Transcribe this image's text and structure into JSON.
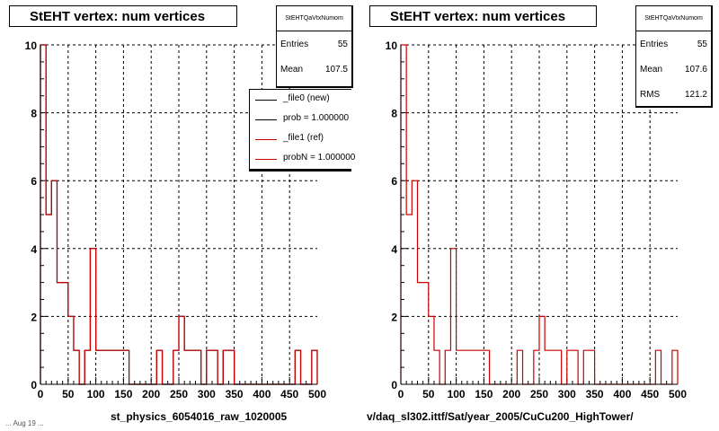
{
  "footer_text": "... Aug 19 ...",
  "chart_data": [
    {
      "type": "histogram",
      "title": "StEHT  vertex: num vertices",
      "xlabel": "st_physics_6054016_raw_1020005",
      "xlim": [
        0,
        500
      ],
      "ylim": [
        0,
        10
      ],
      "x_ticks": [
        0,
        50,
        100,
        150,
        200,
        250,
        300,
        350,
        400,
        450,
        500
      ],
      "y_ticks": [
        0,
        2,
        4,
        6,
        8,
        10
      ],
      "grid": true,
      "bin_width": 10,
      "series": [
        {
          "name": "_file0 (new)",
          "color": "#000000",
          "values": [
            10,
            5,
            6,
            3,
            3,
            2,
            1,
            0,
            1,
            4,
            1,
            1,
            1,
            1,
            1,
            1,
            0,
            0,
            0,
            0,
            0,
            1,
            0,
            0,
            1,
            2,
            1,
            1,
            1,
            0,
            1,
            1,
            0,
            1,
            1,
            0,
            0,
            0,
            0,
            0,
            0,
            0,
            0,
            0,
            0,
            0,
            1,
            0,
            0,
            1
          ]
        },
        {
          "name": "_file1 (ref)",
          "color": "#cc0000",
          "values": [
            10,
            5,
            6,
            3,
            3,
            2,
            1,
            0,
            1,
            4,
            1,
            1,
            1,
            1,
            1,
            1,
            0,
            0,
            0,
            0,
            0,
            1,
            0,
            0,
            1,
            2,
            1,
            1,
            1,
            0,
            1,
            1,
            0,
            1,
            1,
            0,
            0,
            0,
            0,
            0,
            0,
            0,
            0,
            0,
            0,
            0,
            1,
            0,
            0,
            1
          ]
        }
      ],
      "stats": {
        "name": "StEHTQaVtxNumom",
        "entries_label": "Entries",
        "entries": "55",
        "mean_label": "Mean",
        "mean": "107.5"
      },
      "legend": [
        {
          "label": "_file0 (new)",
          "color": "#000000"
        },
        {
          "label": "prob = 1.000000",
          "color": "#000000"
        },
        {
          "label": "_file1 (ref)",
          "color": "#cc0000"
        },
        {
          "label": "probN = 1.000000",
          "color": "#cc0000"
        }
      ]
    },
    {
      "type": "histogram",
      "title": "StEHT  vertex: num vertices",
      "xlabel": "v/daq_sl302.ittf/Sat/year_2005/CuCu200_HighTower/",
      "xlim": [
        0,
        500
      ],
      "ylim": [
        0,
        10
      ],
      "x_ticks": [
        0,
        50,
        100,
        150,
        200,
        250,
        300,
        350,
        400,
        450,
        500
      ],
      "y_ticks": [
        0,
        2,
        4,
        6,
        8,
        10
      ],
      "grid": true,
      "bin_width": 10,
      "series": [
        {
          "name": "",
          "color": "#cc0000",
          "values": [
            10,
            5,
            6,
            3,
            3,
            2,
            1,
            0,
            1,
            4,
            1,
            1,
            1,
            1,
            1,
            1,
            0,
            0,
            0,
            0,
            0,
            1,
            0,
            0,
            1,
            2,
            1,
            1,
            1,
            0,
            1,
            1,
            0,
            1,
            1,
            0,
            0,
            0,
            0,
            0,
            0,
            0,
            0,
            0,
            0,
            0,
            1,
            0,
            0,
            1
          ]
        }
      ],
      "stats": {
        "name": "StEHTQaVtxNumom",
        "entries_label": "Entries",
        "entries": "55",
        "mean_label": "Mean",
        "mean": "107.6",
        "rms_label": "RMS",
        "rms": "121.2"
      }
    }
  ]
}
